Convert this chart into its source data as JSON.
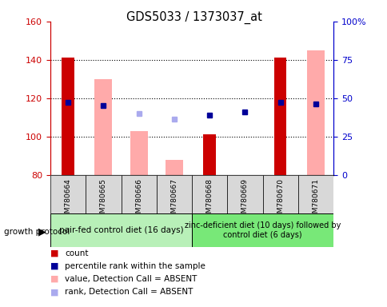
{
  "title": "GDS5033 / 1373037_at",
  "samples": [
    "GSM780664",
    "GSM780665",
    "GSM780666",
    "GSM780667",
    "GSM780668",
    "GSM780669",
    "GSM780670",
    "GSM780671"
  ],
  "ylim_left": [
    80,
    160
  ],
  "ylim_right": [
    0,
    100
  ],
  "yticks_left": [
    80,
    100,
    120,
    140,
    160
  ],
  "yticks_right": [
    0,
    25,
    50,
    75,
    100
  ],
  "ytick_labels_right": [
    "0",
    "25",
    "50",
    "75",
    "100%"
  ],
  "red_bar_values": [
    141,
    null,
    null,
    null,
    101,
    null,
    141,
    null
  ],
  "pink_bar_values": [
    null,
    130,
    103,
    88,
    null,
    null,
    null,
    145
  ],
  "blue_square_values": [
    118,
    116,
    null,
    null,
    111,
    113,
    118,
    117
  ],
  "light_blue_square_values": [
    null,
    null,
    112,
    109,
    null,
    null,
    null,
    null
  ],
  "group1_label": "pair-fed control diet (16 days)",
  "group2_label": "zinc-deficient diet (10 days) followed by\ncontrol diet (6 days)",
  "group1_color": "#b8f0b8",
  "group2_color": "#78e878",
  "protocol_label": "growth protocol",
  "bar_width": 0.35,
  "pink_bar_width": 0.5,
  "red_color": "#cc0000",
  "pink_color": "#ffaaaa",
  "blue_color": "#000099",
  "light_blue_color": "#aaaaee",
  "axis_color_left": "#cc0000",
  "axis_color_right": "#0000cc",
  "bg_color": "#d8d8d8"
}
